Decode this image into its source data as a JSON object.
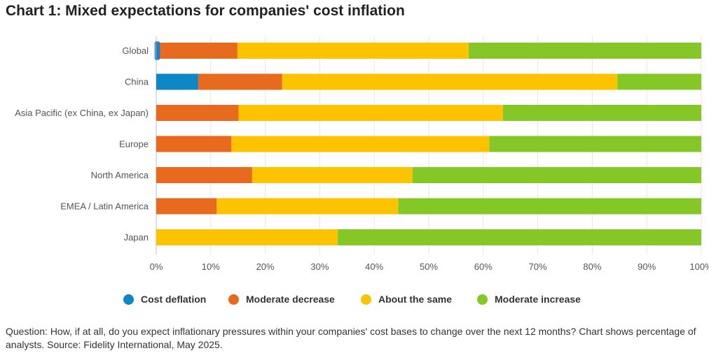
{
  "chart_data": {
    "type": "bar",
    "orientation": "horizontal",
    "stacked": true,
    "title": "Chart 1: Mixed expectations for companies' cost inflation",
    "categories": [
      "Global",
      "China",
      "Asia Pacific (ex China, ex Japan)",
      "Europe",
      "North America",
      "EMEA / Latin America",
      "Japan"
    ],
    "series": [
      {
        "name": "Cost deflation",
        "color": "#0f86c6",
        "values": [
          0.5,
          7.7,
          0,
          0,
          0,
          0,
          0
        ]
      },
      {
        "name": "Moderate decrease",
        "color": "#e86a1f",
        "values": [
          14.4,
          15.4,
          15.1,
          13.8,
          17.6,
          11.1,
          0
        ]
      },
      {
        "name": "About the same",
        "color": "#fdc300",
        "values": [
          42.4,
          61.5,
          48.5,
          47.3,
          29.4,
          33.3,
          33.3
        ]
      },
      {
        "name": "Moderate increase",
        "color": "#84c726",
        "values": [
          42.7,
          15.4,
          36.4,
          38.9,
          53.0,
          55.6,
          66.7
        ]
      }
    ],
    "x_tick_labels": [
      "0%",
      "10%",
      "20%",
      "30%",
      "40%",
      "50%",
      "60%",
      "70%",
      "80%",
      "90%",
      "100%"
    ],
    "xlim": [
      0,
      100
    ],
    "grid": true,
    "legend_position": "bottom"
  },
  "footnote": "Question: How, if at all, do you expect inflationary pressures within your companies' cost bases to change over the next 12 months? Chart shows percentage of analysts. Source: Fidelity International, May 2025."
}
